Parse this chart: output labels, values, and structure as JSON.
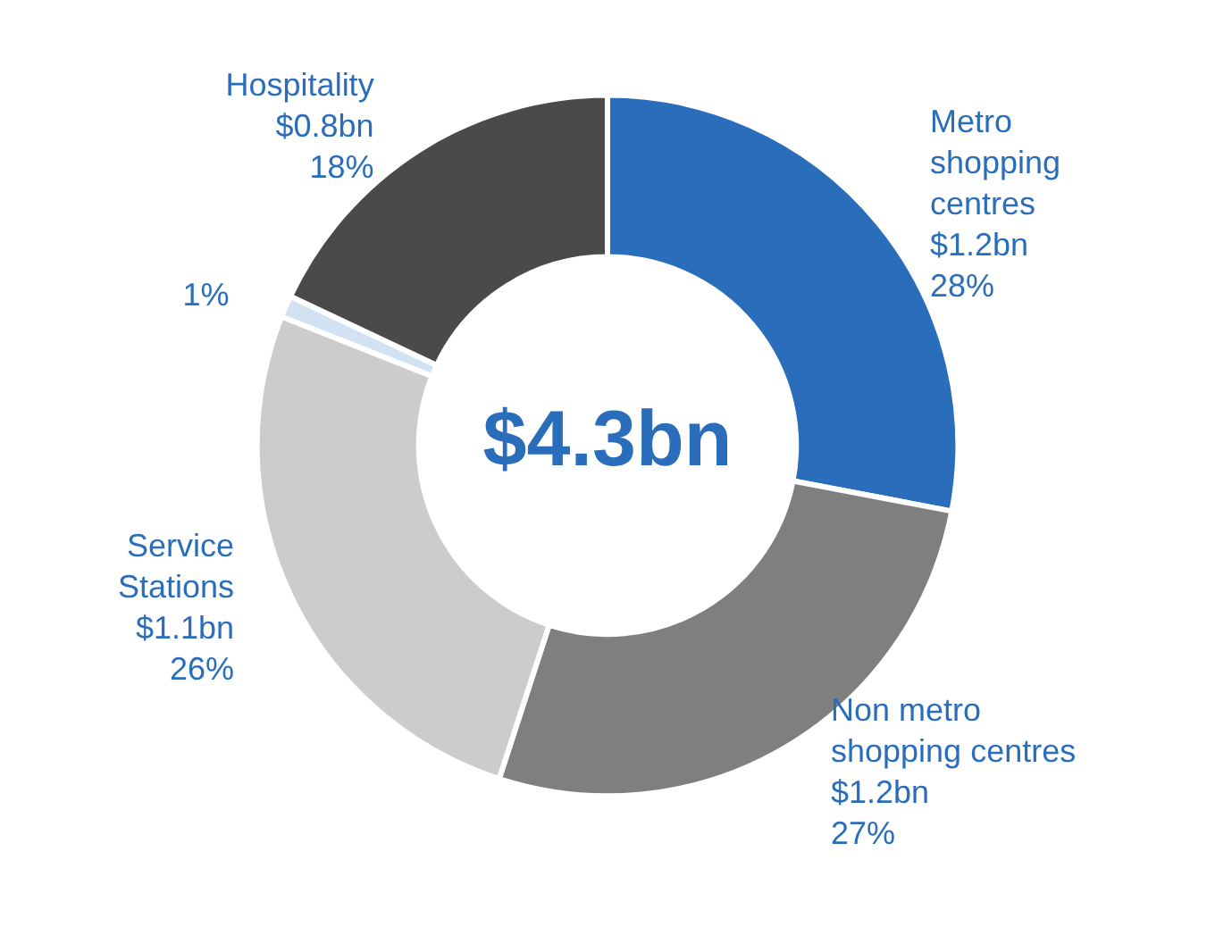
{
  "chart_data": {
    "type": "donut",
    "categories": [
      "Metro\nshopping\ncentres",
      "Non metro\nshopping centres",
      "Service\nStations",
      null,
      "Hospitality"
    ],
    "values": [
      28,
      27,
      26,
      1,
      18
    ],
    "value_labels": [
      "$1.2bn\n28%",
      "$1.2bn\n27%",
      "$1.1bn\n26%",
      "1%",
      "$0.8bn\n18%"
    ],
    "colors": [
      "#2a6ebb",
      "#7f7f7f",
      "#cccccc",
      "#d3e2f3",
      "#4a4a4a"
    ],
    "annotations": [
      "$4.3bn"
    ],
    "legend": false
  }
}
